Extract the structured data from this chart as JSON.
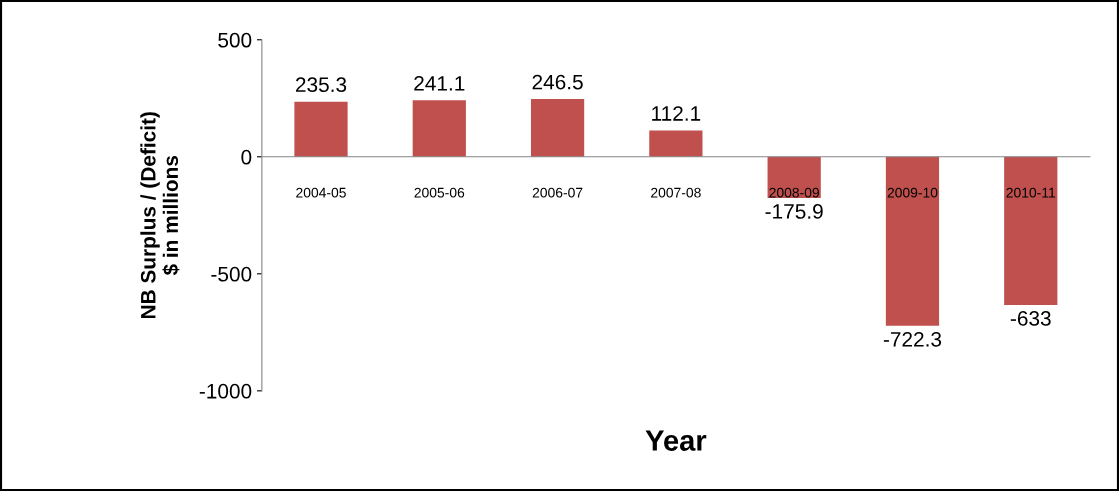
{
  "chart_data": {
    "type": "bar",
    "xlabel": "Year",
    "ylabel": "NB Surplus / (Deficit)\n$ in millions",
    "categories": [
      "2004-05",
      "2005-06",
      "2006-07",
      "2007-08",
      "2008-09",
      "2009-10",
      "2010-11"
    ],
    "values": [
      235.3,
      241.1,
      246.5,
      112.1,
      -175.9,
      -722.3,
      -633
    ],
    "color": "#c0504d",
    "data_labels": true,
    "grid": false,
    "legend": false,
    "ylim": [
      -1000,
      500
    ],
    "yticks": [
      -1000,
      -500,
      0,
      500
    ]
  }
}
